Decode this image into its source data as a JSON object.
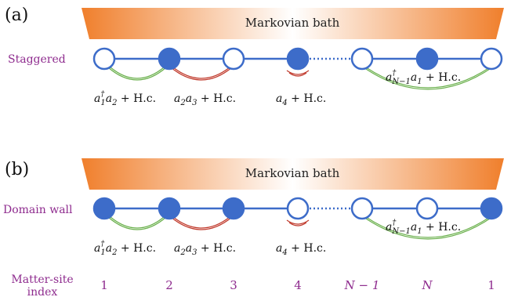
{
  "panel_a": {
    "label": "(a)",
    "bath_label": "Markovian bath",
    "row_label": "Staggered",
    "sites": [
      "empty",
      "filled",
      "empty",
      "filled",
      "empty",
      "filled",
      "empty"
    ],
    "couplings": [
      {
        "text": "a1†a2 + H.c.",
        "color": "#6ab04c"
      },
      {
        "text": "a2a3 + H.c.",
        "color": "#c0392b"
      },
      {
        "text": "a4 + H.c.",
        "color": "#c0392b"
      },
      {
        "text": "a†N−1a1 + H.c.",
        "color": "#6ab04c"
      }
    ]
  },
  "panel_b": {
    "label": "(b)",
    "bath_label": "Markovian bath",
    "row_label": "Domain wall",
    "sites": [
      "filled",
      "filled",
      "filled",
      "empty",
      "empty",
      "empty",
      "filled"
    ],
    "couplings": [
      {
        "text": "a1†a2 + H.c.",
        "color": "#6ab04c"
      },
      {
        "text": "a2a3 + H.c.",
        "color": "#c0392b"
      },
      {
        "text": "a4 + H.c.",
        "color": "#c0392b"
      },
      {
        "text": "a†N−1a1 + H.c.",
        "color": "#6ab04c"
      }
    ]
  },
  "index": {
    "label_line1": "Matter-site",
    "label_line2": "index",
    "values": [
      "1",
      "2",
      "3",
      "4",
      "N − 1",
      "N",
      "1"
    ]
  },
  "colors": {
    "site_blue": "#3d6cc9",
    "bath_orange": "#f07f2c",
    "label_purple": "#8e2b8e",
    "green_coupling": "#6ab04c",
    "red_coupling": "#c0392b"
  }
}
